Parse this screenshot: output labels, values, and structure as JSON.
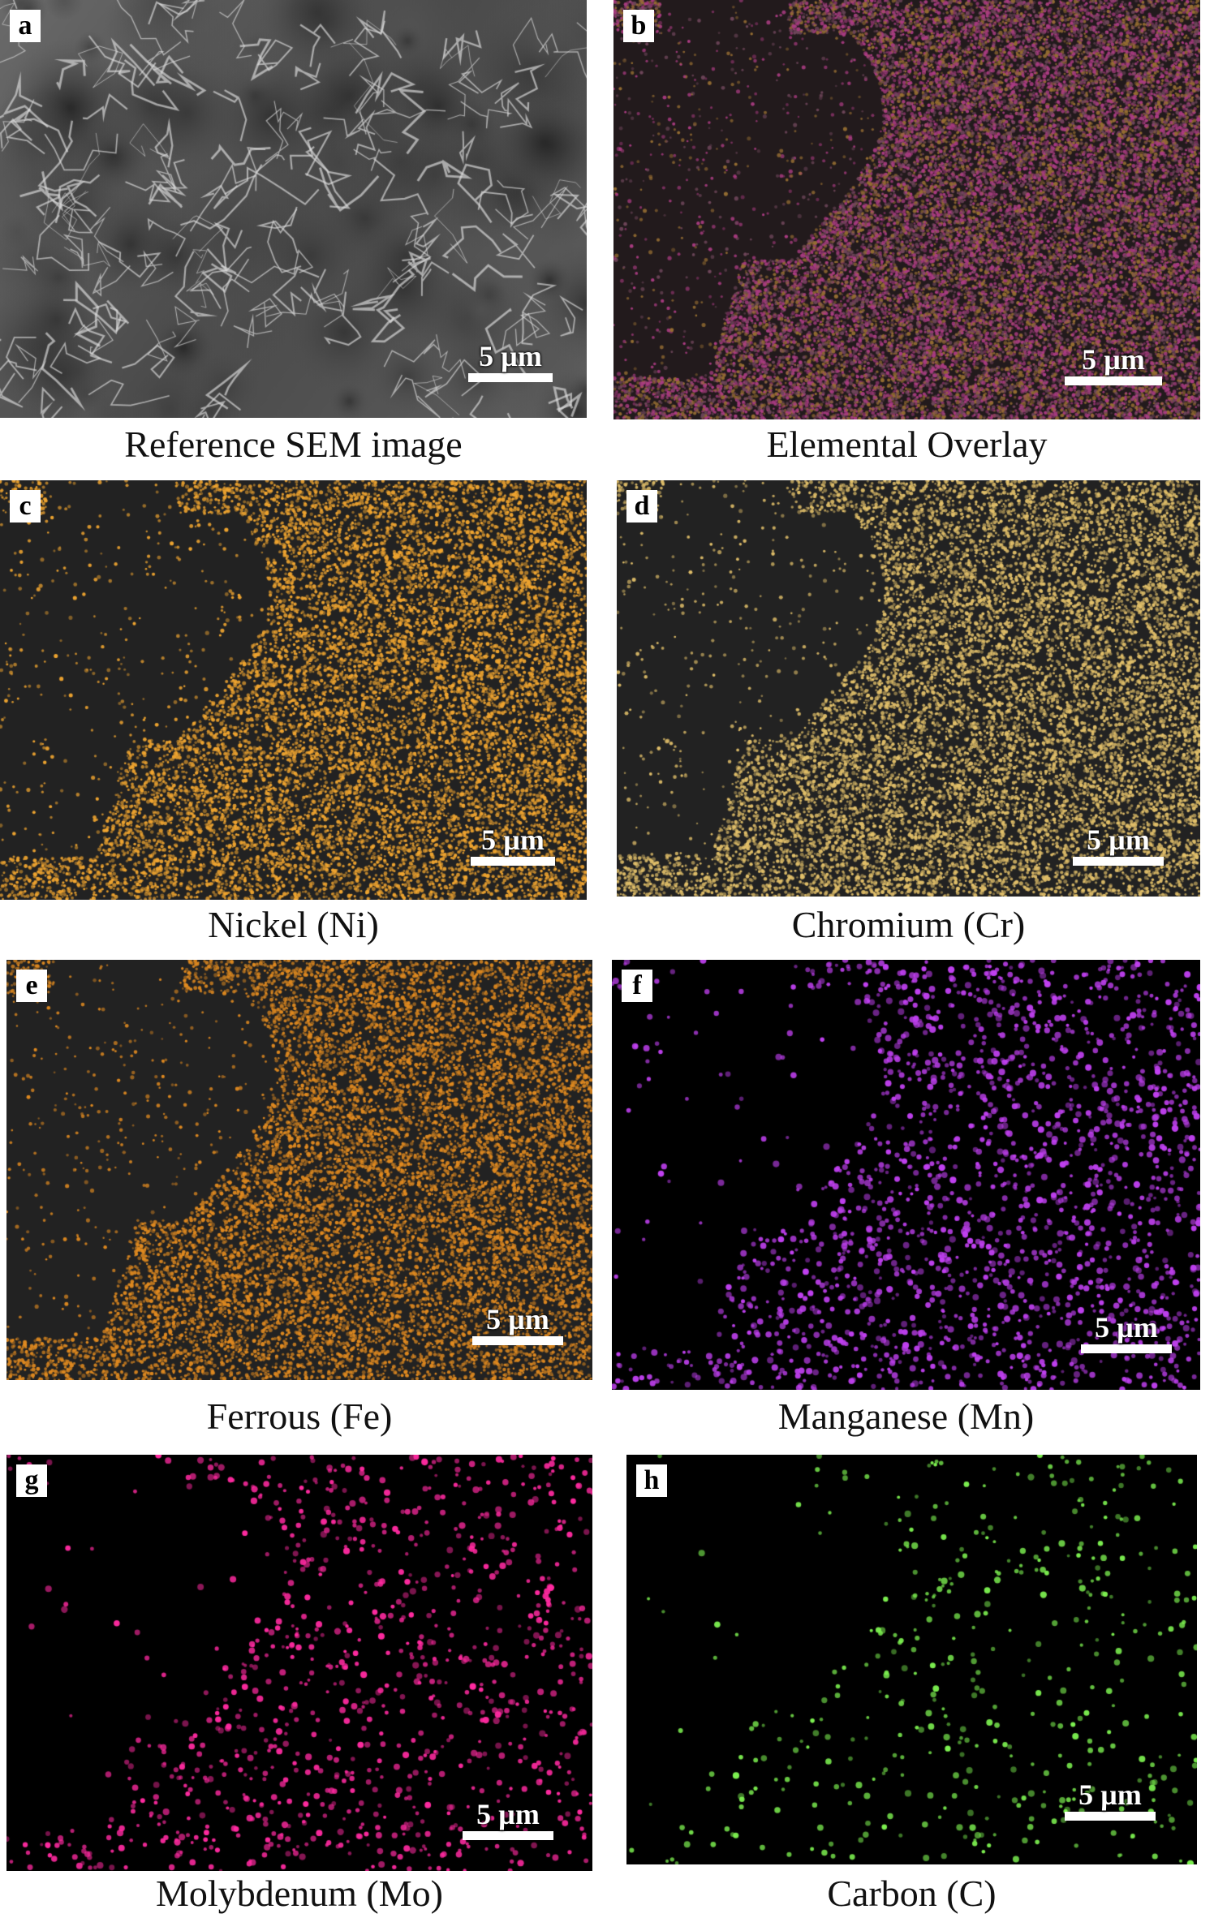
{
  "panels": [
    {
      "letter": "a",
      "caption": "Reference SEM image",
      "scale": "5 µm",
      "kind": "sem",
      "color": "#9a9a9a"
    },
    {
      "letter": "b",
      "caption": "Elemental Overlay",
      "scale": "5 µm",
      "kind": "overlay",
      "color": "#b05a8c"
    },
    {
      "letter": "c",
      "caption": "Nickel (Ni)",
      "scale": "5 µm",
      "kind": "dots",
      "color": "#f0a530"
    },
    {
      "letter": "d",
      "caption": "Chromium (Cr)",
      "scale": "5 µm",
      "kind": "dots",
      "color": "#e2c06a"
    },
    {
      "letter": "e",
      "caption": "Ferrous (Fe)",
      "scale": "5 µm",
      "kind": "dots",
      "color": "#e08a20"
    },
    {
      "letter": "f",
      "caption": "Manganese (Mn)",
      "scale": "5 µm",
      "kind": "dots",
      "color": "#c040f0"
    },
    {
      "letter": "g",
      "caption": "Molybdenum (Mo)",
      "scale": "5 µm",
      "kind": "dots",
      "color": "#ff2aa0"
    },
    {
      "letter": "h",
      "caption": "Carbon (C)",
      "scale": "5 µm",
      "kind": "dots",
      "color": "#7cf050"
    }
  ]
}
